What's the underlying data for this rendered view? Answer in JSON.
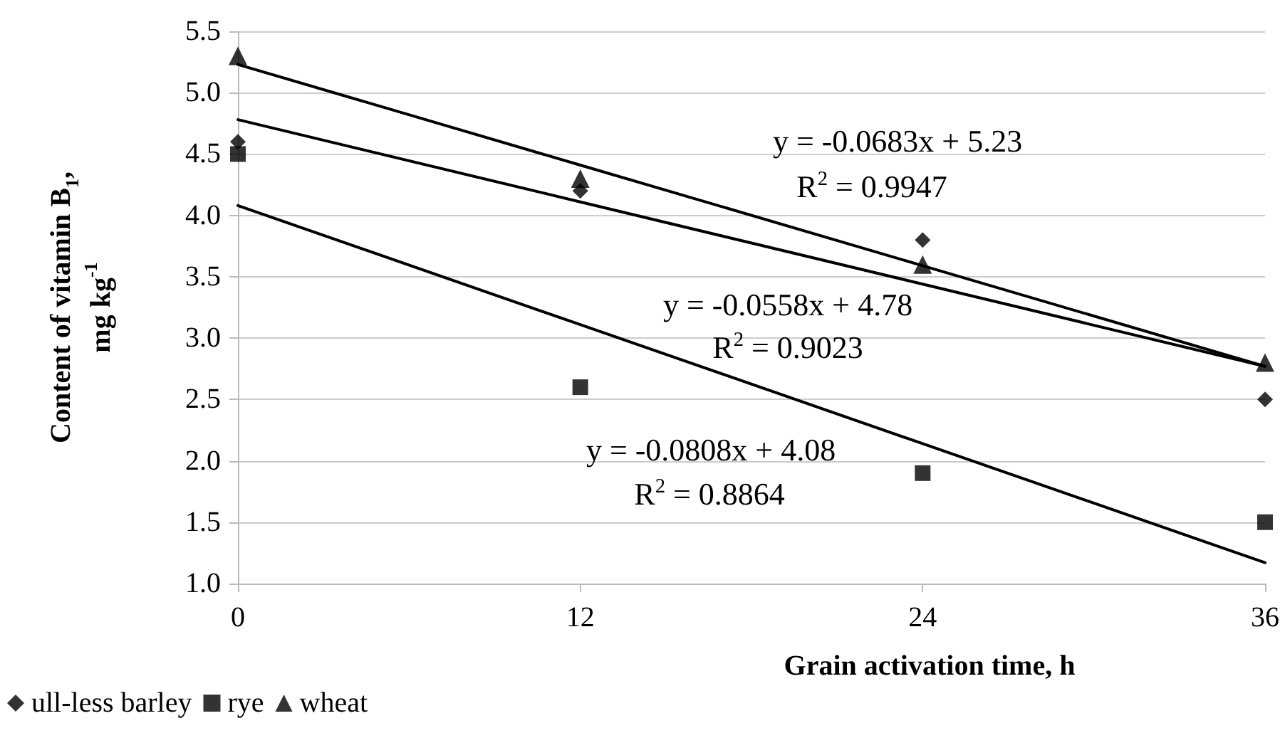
{
  "chart_data": {
    "type": "scatter",
    "xlabel": "Grain activation time, h",
    "ylabel": "Content of vitamin B$_{1}$,\nmg kg$^{-1}$",
    "xlim": [
      0,
      36
    ],
    "xticks": [
      0,
      12,
      24,
      36
    ],
    "ylim": [
      1,
      5.5
    ],
    "yticks": [
      {
        "value": 1,
        "label": "1.0"
      },
      {
        "value": 1.5,
        "label": "1.5"
      },
      {
        "value": 2,
        "label": "2.0"
      },
      {
        "value": 2.5,
        "label": "2.5"
      },
      {
        "value": 3,
        "label": "3.0"
      },
      {
        "value": 3.5,
        "label": "3.5"
      },
      {
        "value": 4,
        "label": "4.0"
      },
      {
        "value": 4.5,
        "label": "4.5"
      },
      {
        "value": 5,
        "label": "5.0"
      },
      {
        "value": 5.5,
        "label": "5.5"
      }
    ],
    "grid": "y",
    "legend": "bottom left",
    "x": [
      0,
      12,
      24,
      36
    ],
    "series": [
      {
        "name": "ull-less barley",
        "color": "#000000",
        "marker": "diamond",
        "values": [
          4.6,
          4.2,
          3.8,
          2.5
        ]
      },
      {
        "name": "rye",
        "color": "#000000",
        "marker": "square",
        "values": [
          4.5,
          2.6,
          1.9,
          1.5
        ]
      },
      {
        "name": "wheat",
        "color": "#000000",
        "marker": "triangle",
        "values": [
          5.3,
          4.3,
          3.6,
          2.8
        ]
      },
      {
        "type": "line",
        "color": "#000000",
        "marker": "none",
        "line_style": "solid",
        "values": [
          4.78,
          4.11,
          3.44,
          2.77
        ]
      },
      {
        "type": "line",
        "color": "#000000",
        "marker": "none",
        "line_style": "solid",
        "values": [
          4.08,
          3.11,
          2.14,
          1.17
        ]
      },
      {
        "type": "line",
        "color": "#000000",
        "marker": "none",
        "line_style": "solid",
        "values": [
          5.23,
          4.41,
          3.59,
          2.77
        ]
      }
    ],
    "annotations": [
      "y = -0.0683x + 5.23",
      "R$^{2}$ = 0.9947",
      "y = -0.0558x + 4.78",
      "R$^{2}$ = 0.9023",
      "y = -0.0808x + 4.08",
      "R$^{2}$ = 0.8864"
    ]
  }
}
